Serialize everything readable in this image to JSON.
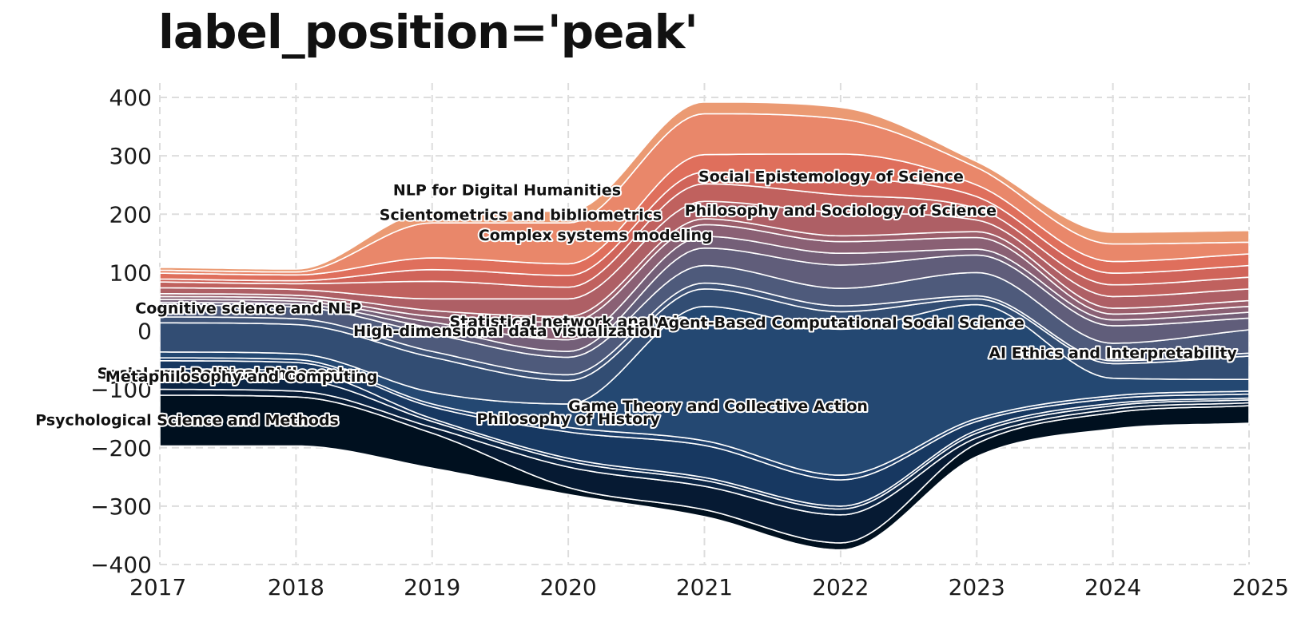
{
  "chart_data": {
    "type": "area",
    "subtype": "streamgraph",
    "title": "label_position='peak'",
    "xlabel": "",
    "ylabel": "",
    "x": [
      2017,
      2018,
      2019,
      2020,
      2021,
      2022,
      2023,
      2024,
      2025
    ],
    "xlim": [
      2017,
      2025
    ],
    "ylim": [
      -400,
      400
    ],
    "yticks": [
      400,
      300,
      200,
      100,
      0,
      -100,
      -200,
      -300,
      -400
    ],
    "ytick_labels": [
      "400",
      "300",
      "200",
      "100",
      "0",
      "−100",
      "−200",
      "−300",
      "−400"
    ],
    "xtick_labels": [
      "2017",
      "2018",
      "2019",
      "2020",
      "2021",
      "2022",
      "2023",
      "2024",
      "2025"
    ],
    "grid": true,
    "baseline": [
      -197,
      -197,
      -235,
      -280,
      -318,
      -375,
      -215,
      -168,
      -158
    ],
    "series": [
      {
        "name": "Psychological Science and Methods",
        "values": [
          87,
          84,
          60,
          12,
          12,
          12,
          22,
          28,
          30
        ],
        "color": "#00101f"
      },
      {
        "name": "",
        "values": [
          10,
          10,
          10,
          35,
          40,
          48,
          10,
          6,
          5
        ],
        "color": "#061a33"
      },
      {
        "name": "Social and Political Philosophy",
        "values": [
          20,
          20,
          10,
          10,
          10,
          10,
          8,
          6,
          5
        ],
        "color": "#0b2545"
      },
      {
        "name": "Metaphilosophy and Computing",
        "values": [
          15,
          15,
          5,
          5,
          5,
          5,
          5,
          4,
          3
        ],
        "color": "#112f56"
      },
      {
        "name": "Game Theory and Collective Action",
        "values": [
          14,
          14,
          20,
          45,
          55,
          45,
          15,
          8,
          7
        ],
        "color": "#173861"
      },
      {
        "name": "Philosophy of History",
        "values": [
          5,
          5,
          5,
          8,
          8,
          8,
          5,
          5,
          5
        ],
        "color": "#1d3f6b"
      },
      {
        "name": "Agent-Based Computational Social Science",
        "values": [
          10,
          10,
          20,
          40,
          230,
          250,
          195,
          30,
          20
        ],
        "color": "#244872"
      },
      {
        "name": "Cognitive science and NLP",
        "values": [
          50,
          50,
          60,
          40,
          30,
          30,
          10,
          25,
          40
        ],
        "color": "#324d73"
      },
      {
        "name": "High-dimensional data visualization",
        "values": [
          10,
          10,
          10,
          10,
          10,
          10,
          5,
          5,
          5
        ],
        "color": "#3f5478"
      },
      {
        "name": "Statistical network analysis",
        "values": [
          20,
          20,
          30,
          30,
          30,
          30,
          40,
          30,
          40
        ],
        "color": "#4e5a7b"
      },
      {
        "name": "AI Ethics and Interpretability",
        "values": [
          5,
          5,
          10,
          10,
          30,
          40,
          30,
          30,
          20
        ],
        "color": "#605d7a"
      },
      {
        "name": "",
        "values": [
          5,
          5,
          10,
          20,
          20,
          20,
          10,
          10,
          10
        ],
        "color": "#745f78"
      },
      {
        "name": "",
        "values": [
          5,
          5,
          10,
          30,
          20,
          20,
          20,
          10,
          10
        ],
        "color": "#8a6074"
      },
      {
        "name": "",
        "values": [
          5,
          5,
          10,
          10,
          10,
          10,
          10,
          10,
          10
        ],
        "color": "#9c5f6c"
      },
      {
        "name": "Complex systems modeling",
        "values": [
          10,
          10,
          20,
          30,
          30,
          40,
          20,
          20,
          20
        ],
        "color": "#ae5f65"
      },
      {
        "name": "Philosophy and Sociology of Science",
        "values": [
          10,
          10,
          30,
          20,
          30,
          30,
          20,
          20,
          20
        ],
        "color": "#c0615e"
      },
      {
        "name": "Scientometrics and bibliometrics",
        "values": [
          5,
          5,
          20,
          20,
          20,
          30,
          20,
          20,
          20
        ],
        "color": "#d0645a"
      },
      {
        "name": "Social Epistemology of Science",
        "values": [
          10,
          10,
          20,
          20,
          30,
          40,
          20,
          20,
          20
        ],
        "color": "#df6f5c"
      },
      {
        "name": "NLP for Digital Humanities",
        "values": [
          5,
          5,
          60,
          70,
          70,
          60,
          30,
          30,
          20
        ],
        "color": "#e9876a"
      },
      {
        "name": "",
        "values": [
          5,
          5,
          20,
          20,
          20,
          20,
          10,
          20,
          20
        ],
        "color": "#eb9a73"
      }
    ],
    "labels": [
      {
        "text": "NLP for Digital Humanities",
        "x": 2019.55,
        "y": 242
      },
      {
        "text": "Scientometrics and bibliometrics",
        "x": 2019.65,
        "y": 200
      },
      {
        "text": "Complex systems modeling",
        "x": 2020.2,
        "y": 165
      },
      {
        "text": "Social Epistemology of Science",
        "x": 2021.93,
        "y": 265
      },
      {
        "text": "Philosophy and Sociology of Science",
        "x": 2022.0,
        "y": 207
      },
      {
        "text": "Cognitive science and NLP",
        "x": 2017.65,
        "y": 40
      },
      {
        "text": "Statistical network analysis",
        "x": 2020.0,
        "y": 17
      },
      {
        "text": "High-dimensional data visualization",
        "x": 2019.55,
        "y": 1
      },
      {
        "text": "Agent-Based Computational Social Science",
        "x": 2022.0,
        "y": 15
      },
      {
        "text": "AI Ethics and Interpretability",
        "x": 2024.0,
        "y": -37
      },
      {
        "text": "Social and Political Philosophy",
        "x": 2017.5,
        "y": -72
      },
      {
        "text": "Metaphilosophy and Computing",
        "x": 2017.6,
        "y": -77
      },
      {
        "text": "Game Theory and Collective Action",
        "x": 2021.1,
        "y": -128
      },
      {
        "text": "Philosophy of History",
        "x": 2020.0,
        "y": -150
      },
      {
        "text": "Psychological Science and Methods",
        "x": 2017.2,
        "y": -152
      }
    ]
  }
}
